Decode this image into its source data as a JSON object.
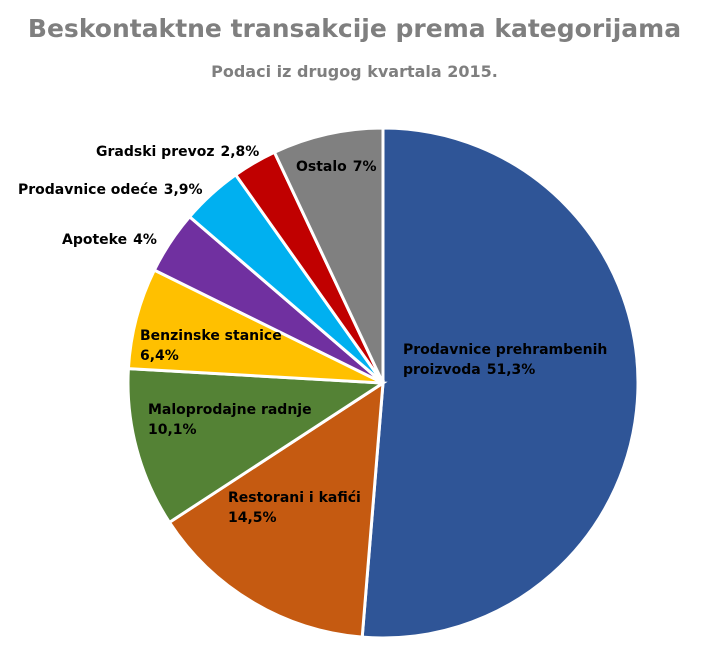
{
  "chart_data": {
    "type": "pie",
    "title": "Beskontaktne transakcije prema kategorijama",
    "subtitle": "Podaci iz drugog kvartala 2015.",
    "categories": [
      "Prodavnice prehrambenih proizvoda",
      "Restorani i kafići",
      "Maloprodajne radnje",
      "Benzinske stanice",
      "Apoteke",
      "Prodavnice odeće",
      "Gradski prevoz",
      "Ostalo"
    ],
    "values": [
      51.3,
      14.5,
      10.1,
      6.4,
      4,
      3.9,
      2.8,
      7
    ],
    "value_labels": [
      "51,3%",
      "14,5%",
      "10,1%",
      "6,4%",
      "4%",
      "3,9%",
      "2,8%",
      "7%"
    ],
    "colors": [
      "#2f5597",
      "#c55a11",
      "#548235",
      "#ffc000",
      "#7030a0",
      "#00b0f0",
      "#c00000",
      "#808080"
    ]
  }
}
